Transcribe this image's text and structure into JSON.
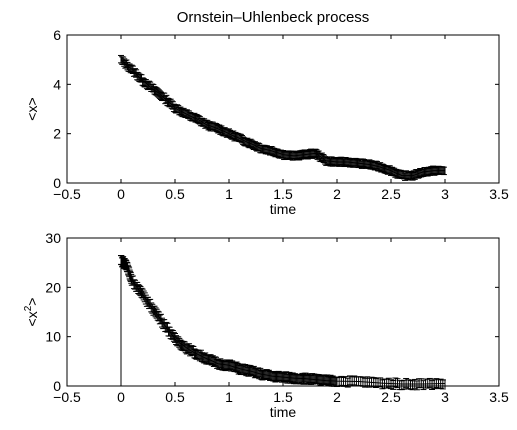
{
  "chart_data": [
    {
      "type": "line",
      "title": "Ornstein–Uhlenbeck process",
      "xlabel": "time",
      "ylabel": "<x>",
      "ylabel_parts": {
        "base": "<x",
        "sup": "",
        "close": ">"
      },
      "xlim": [
        -0.5,
        3.5
      ],
      "ylim": [
        0,
        6
      ],
      "xticks": [
        "−0.5",
        "0",
        "0.5",
        "1",
        "1.5",
        "2",
        "2.5",
        "3",
        "3.5"
      ],
      "xtick_values": [
        -0.5,
        0,
        0.5,
        1,
        1.5,
        2,
        2.5,
        3,
        3.5
      ],
      "yticks": [
        "0",
        "2",
        "4",
        "6"
      ],
      "ytick_values": [
        0,
        2,
        4,
        6
      ],
      "grid": false,
      "error_bar_halfwidth": 0.15,
      "series": [
        {
          "x": [
            0,
            0.1,
            0.2,
            0.3,
            0.4,
            0.5,
            0.6,
            0.7,
            0.8,
            0.9,
            1.0,
            1.1,
            1.2,
            1.3,
            1.4,
            1.5,
            1.6,
            1.7,
            1.8,
            1.9,
            2.0,
            2.1,
            2.2,
            2.3,
            2.4,
            2.5,
            2.6,
            2.7,
            2.8,
            2.9,
            3.0
          ],
          "y": [
            5.0,
            4.6,
            4.15,
            3.8,
            3.45,
            3.05,
            2.8,
            2.6,
            2.35,
            2.2,
            2.0,
            1.8,
            1.6,
            1.4,
            1.3,
            1.15,
            1.1,
            1.15,
            1.2,
            0.9,
            0.85,
            0.85,
            0.8,
            0.75,
            0.65,
            0.5,
            0.3,
            0.3,
            0.45,
            0.5,
            0.5
          ]
        }
      ]
    },
    {
      "type": "line",
      "title": "",
      "xlabel": "time",
      "ylabel": "<x2>",
      "ylabel_parts": {
        "base": "<x",
        "sup": "2",
        "close": ">"
      },
      "xlim": [
        -0.5,
        3.5
      ],
      "ylim": [
        0,
        30
      ],
      "xticks": [
        "−0.5",
        "0",
        "0.5",
        "1",
        "1.5",
        "2",
        "2.5",
        "3",
        "3.5"
      ],
      "xtick_values": [
        -0.5,
        0,
        0.5,
        1,
        1.5,
        2,
        2.5,
        3,
        3.5
      ],
      "yticks": [
        "0",
        "10",
        "20",
        "30"
      ],
      "ytick_values": [
        0,
        10,
        20,
        30
      ],
      "grid": false,
      "error_bar_halfwidth": 0.9,
      "series": [
        {
          "x": [
            0,
            0,
            0.05,
            0.1,
            0.2,
            0.3,
            0.4,
            0.5,
            0.6,
            0.7,
            0.8,
            0.9,
            1.0,
            1.1,
            1.2,
            1.3,
            1.4,
            1.5,
            1.6,
            1.7,
            1.8,
            1.9,
            2.0,
            2.2,
            2.4,
            2.6,
            2.8,
            3.0
          ],
          "y": [
            0,
            25.5,
            24.5,
            21.5,
            18.5,
            15.5,
            12.5,
            9.5,
            7.8,
            6.5,
            5.5,
            4.5,
            4.2,
            3.5,
            3.0,
            2.4,
            2.0,
            1.8,
            1.6,
            1.5,
            1.3,
            1.1,
            1.0,
            0.9,
            0.6,
            0.4,
            0.4,
            0.5
          ]
        }
      ]
    }
  ]
}
